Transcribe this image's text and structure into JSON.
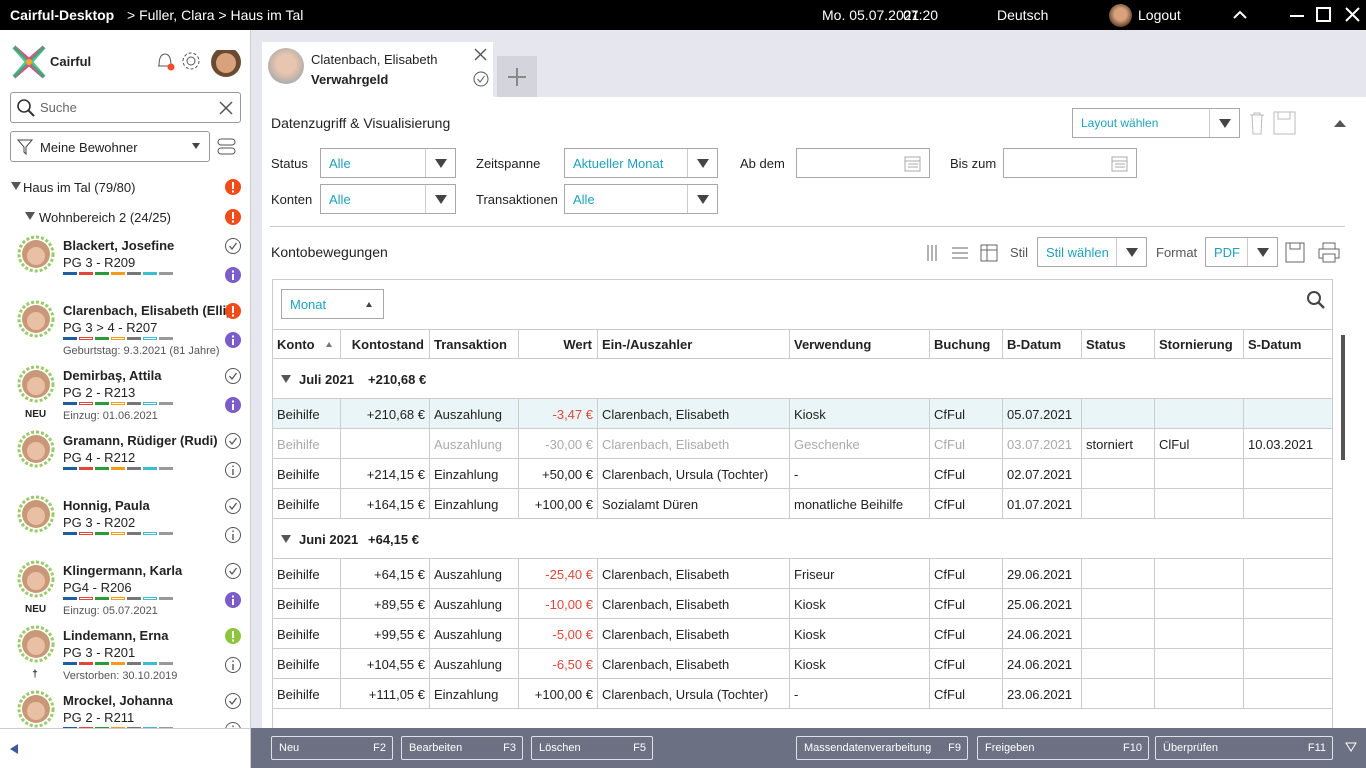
{
  "titlebar": {
    "app": "Cairful-Desktop",
    "path": "> Fuller, Clara > Haus im Tal",
    "date": "Mo. 05.07.2021",
    "time": "07:20",
    "language": "Deutsch",
    "logout": "Logout"
  },
  "sidebar": {
    "brand": "Cairful",
    "search": "Suche",
    "filter": "Meine Bewohner",
    "group": "Haus im Tal (79/80)",
    "subgroup": "Wohnbereich 2 (24/25)",
    "residents": [
      {
        "name": "Blackert, Josefine",
        "room": "PG 3 - R209",
        "status": "check",
        "info": "filled"
      },
      {
        "name": "Clarenbach, Elisabeth (Elli)",
        "room": "PG 3 > 4 - R207",
        "note": "Geburtstag: 9.3.2021 (81 Jahre)",
        "status": "alert",
        "info": "filled"
      },
      {
        "name": "Demirbaş, Attila",
        "room": "PG 2 - R213",
        "note": "Einzug: 01.06.2021",
        "tag": "NEU",
        "status": "check",
        "info": "filled"
      },
      {
        "name": "Gramann, Rüdiger (Rudi)",
        "room": "PG 4 - R212",
        "status": "check",
        "info": "outline"
      },
      {
        "name": "Honnig, Paula",
        "room": "PG 3 - R202",
        "status": "check",
        "info": "outline"
      },
      {
        "name": "Klingermann, Karla",
        "room": "PG4 - R206",
        "note": "Einzug: 05.07.2021",
        "tag": "NEU",
        "status": "check",
        "info": "filled"
      },
      {
        "name": "Lindemann, Erna",
        "room": "PG 3 - R201",
        "note": "Verstorben: 30.10.2019",
        "tag": "†",
        "status": "alert-green",
        "info": "outline"
      },
      {
        "name": "Mrockel, Johanna",
        "room": "PG 2 - R211",
        "status": "check",
        "info": "outline"
      }
    ]
  },
  "tab": {
    "name": "Clatenbach, Elisabeth",
    "subject": "Verwahrgeld"
  },
  "panel": {
    "title": "Datenzugriff & Visualisierung",
    "layout": "Layout wählen",
    "filters": [
      {
        "label": "Status",
        "value": "Alle"
      },
      {
        "label": "Zeitspanne",
        "value": "Aktueller Monat"
      },
      {
        "label": "Ab dem"
      },
      {
        "label": "Bis zum"
      },
      {
        "label": "Konten",
        "value": "Alle"
      },
      {
        "label": "Transaktionen",
        "value": "Alle"
      }
    ]
  },
  "table": {
    "title": "Kontobewegungen",
    "style_label": "Stil",
    "style": "Stil wählen",
    "format_label": "Format",
    "format": "PDF",
    "group_by": "Monat",
    "columns": [
      "Konto",
      "Kontostand",
      "Transaktion",
      "Wert",
      "Ein-/Auszahler",
      "Verwendung",
      "Buchung",
      "B-Datum",
      "Status",
      "Stornierung",
      "S-Datum"
    ],
    "groups": [
      {
        "label": "Juli 2021",
        "total": "+210,68 €",
        "rows": [
          {
            "cells": [
              "Beihilfe",
              "+210,68 €",
              "Auszahlung",
              "-3,47 €",
              "Clarenbach, Elisabeth",
              "Kiosk",
              "CfFul",
              "05.07.2021",
              null,
              null,
              null
            ],
            "highlighted": true
          },
          {
            "cells": [
              "Beihilfe",
              null,
              "Auszahlung",
              "-30,00 €",
              "Clarenbach, Elisabeth",
              "Geschenke",
              "CfFul",
              "03.07.2021",
              "storniert",
              "ClFul",
              "10.03.2021"
            ],
            "muted": true
          },
          {
            "cells": [
              "Beihilfe",
              "+214,15 €",
              "Einzahlung",
              "+50,00 €",
              "Clarenbach, Ursula (Tochter)",
              "-",
              "CfFul",
              "02.07.2021",
              null,
              null,
              null
            ]
          },
          {
            "cells": [
              "Beihilfe",
              "+164,15 €",
              "Einzahlung",
              "+100,00 €",
              "Sozialamt Düren",
              "monatliche Beihilfe",
              "CfFul",
              "01.07.2021",
              null,
              null,
              null
            ]
          }
        ]
      },
      {
        "label": "Juni 2021",
        "total": "+64,15 €",
        "rows": [
          {
            "cells": [
              "Beihilfe",
              "+64,15 €",
              "Auszahlung",
              "-25,40 €",
              "Clarenbach, Elisabeth",
              "Friseur",
              "CfFul",
              "29.06.2021",
              null,
              null,
              null
            ]
          },
          {
            "cells": [
              "Beihilfe",
              "+89,55 €",
              "Auszahlung",
              "-10,00 €",
              "Clarenbach, Elisabeth",
              "Kiosk",
              "CfFul",
              "25.06.2021",
              null,
              null,
              null
            ]
          },
          {
            "cells": [
              "Beihilfe",
              "+99,55 €",
              "Auszahlung",
              "-5,00 €",
              "Clarenbach, Elisabeth",
              "Kiosk",
              "CfFul",
              "24.06.2021",
              null,
              null,
              null
            ]
          },
          {
            "cells": [
              "Beihilfe",
              "+104,55 €",
              "Auszahlung",
              "-6,50 €",
              "Clarenbach, Elisabeth",
              "Kiosk",
              "CfFul",
              "24.06.2021",
              null,
              null,
              null
            ]
          },
          {
            "cells": [
              "Beihilfe",
              "+111,05 €",
              "Einzahlung",
              "+100,00 €",
              "Clarenbach, Ursula (Tochter)",
              "-",
              "CfFul",
              "23.06.2021",
              null,
              null,
              null
            ]
          }
        ]
      }
    ]
  },
  "footer": [
    {
      "label": "Neu",
      "key": "F2"
    },
    {
      "label": "Bearbeiten",
      "key": "F3"
    },
    {
      "label": "Löschen",
      "key": "F5"
    },
    {
      "label": "Massendatenverarbeitung",
      "key": "F9"
    },
    {
      "label": "Freigeben",
      "key": "F10"
    },
    {
      "label": "Überprüfen",
      "key": "F11"
    }
  ]
}
